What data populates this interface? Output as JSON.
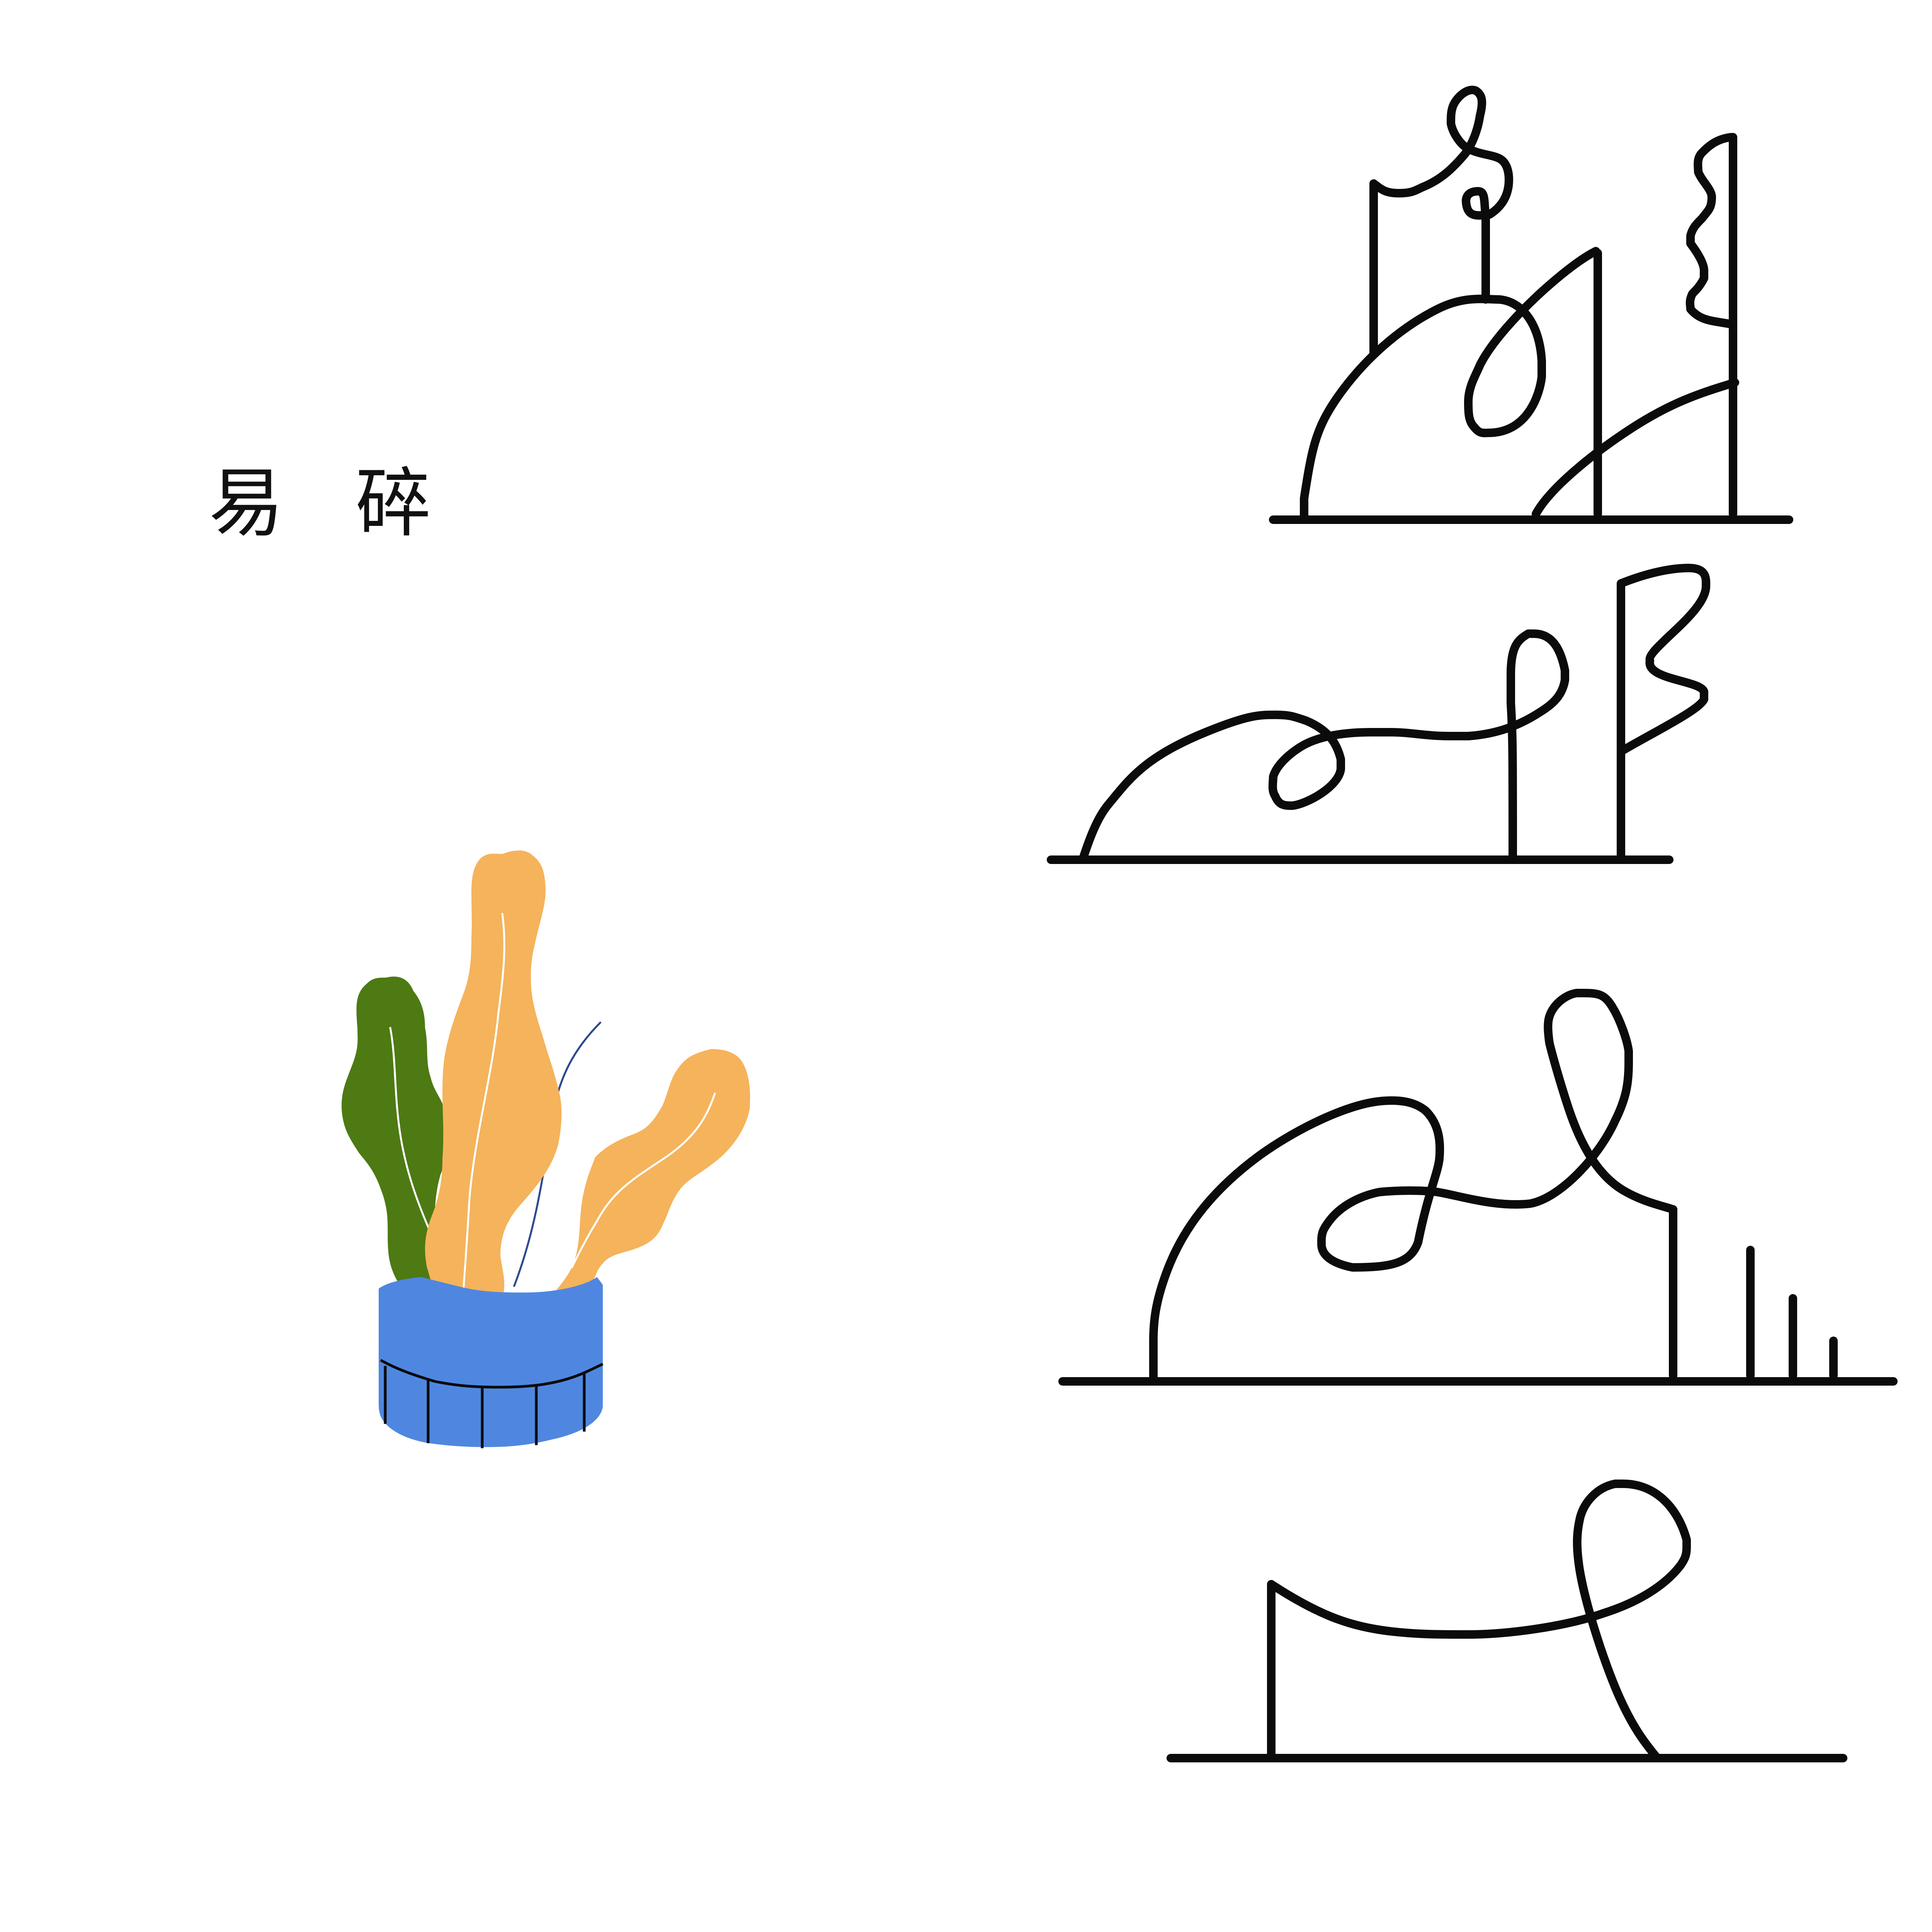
{
  "title": {
    "chars": [
      "易",
      "碎"
    ]
  },
  "colors": {
    "background": "#ffffff",
    "ink": "#0b0b0b",
    "pot_blue": "#4f87e0",
    "leaf_orange": "#f5b35c",
    "leaf_green": "#4d7a13",
    "stem_blue": "#2b4a8c"
  },
  "illustration": {
    "plant": "potted-plant",
    "line_drawings": [
      "line-drawing-1",
      "line-drawing-2",
      "line-drawing-3",
      "line-drawing-4"
    ]
  }
}
